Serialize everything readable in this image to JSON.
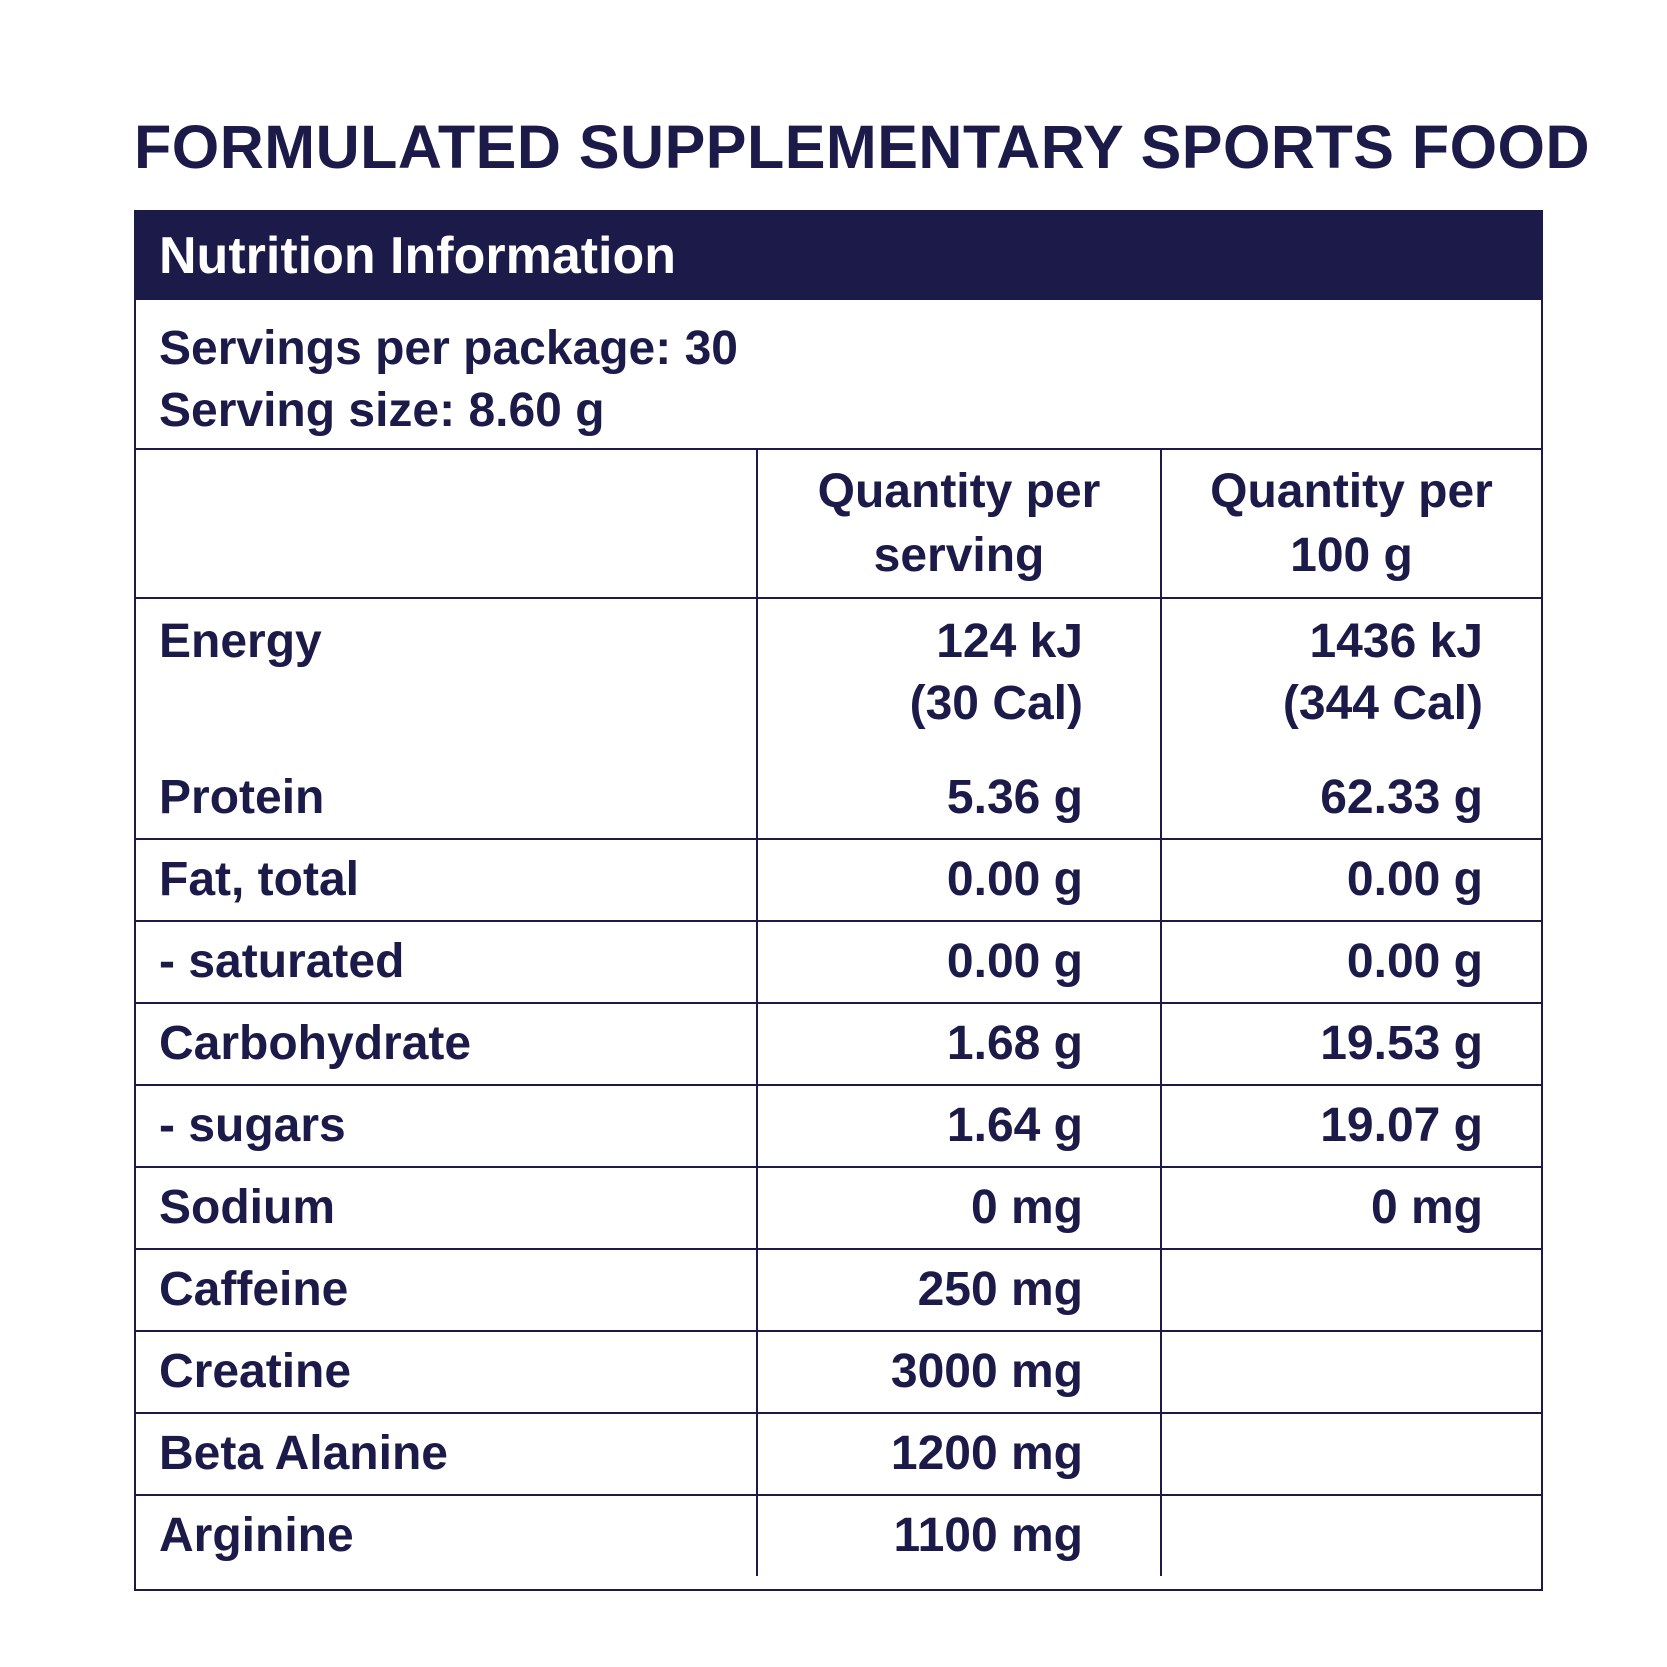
{
  "title": "FORMULATED SUPPLEMENTARY SPORTS FOOD",
  "panel": {
    "heading": "Nutrition Information",
    "servings_per_package": "Servings per package: 30",
    "serving_size": "Serving size: 8.60 g",
    "columns": [
      "",
      "Quantity per serving",
      "Quantity per 100 g"
    ],
    "column_lines": [
      [
        "Quantity per",
        "serving"
      ],
      [
        "Quantity per",
        "100 g"
      ]
    ],
    "rows": [
      {
        "name": "Energy",
        "per_serving": "124 kJ",
        "per_serving_2": "(30 Cal)",
        "per_100g": "1436 kJ",
        "per_100g_2": "(344 Cal)"
      },
      {
        "name": "Protein",
        "per_serving": "5.36 g",
        "per_100g": "62.33 g"
      },
      {
        "name": "Fat, total",
        "per_serving": "0.00 g",
        "per_100g": "0.00 g"
      },
      {
        "name": "- saturated",
        "per_serving": "0.00 g",
        "per_100g": "0.00 g"
      },
      {
        "name": "Carbohydrate",
        "per_serving": "1.68 g",
        "per_100g": "19.53 g"
      },
      {
        "name": "- sugars",
        "per_serving": "1.64 g",
        "per_100g": "19.07 g"
      },
      {
        "name": "Sodium",
        "per_serving": "0 mg",
        "per_100g": "0 mg"
      },
      {
        "name": "Caffeine",
        "per_serving": "250 mg",
        "per_100g": ""
      },
      {
        "name": "Creatine",
        "per_serving": "3000 mg",
        "per_100g": ""
      },
      {
        "name": "Beta Alanine",
        "per_serving": "1200 mg",
        "per_100g": ""
      },
      {
        "name": "Arginine",
        "per_serving": "1100 mg",
        "per_100g": ""
      }
    ]
  },
  "colors": {
    "navy": "#1c1a48",
    "white": "#ffffff"
  }
}
